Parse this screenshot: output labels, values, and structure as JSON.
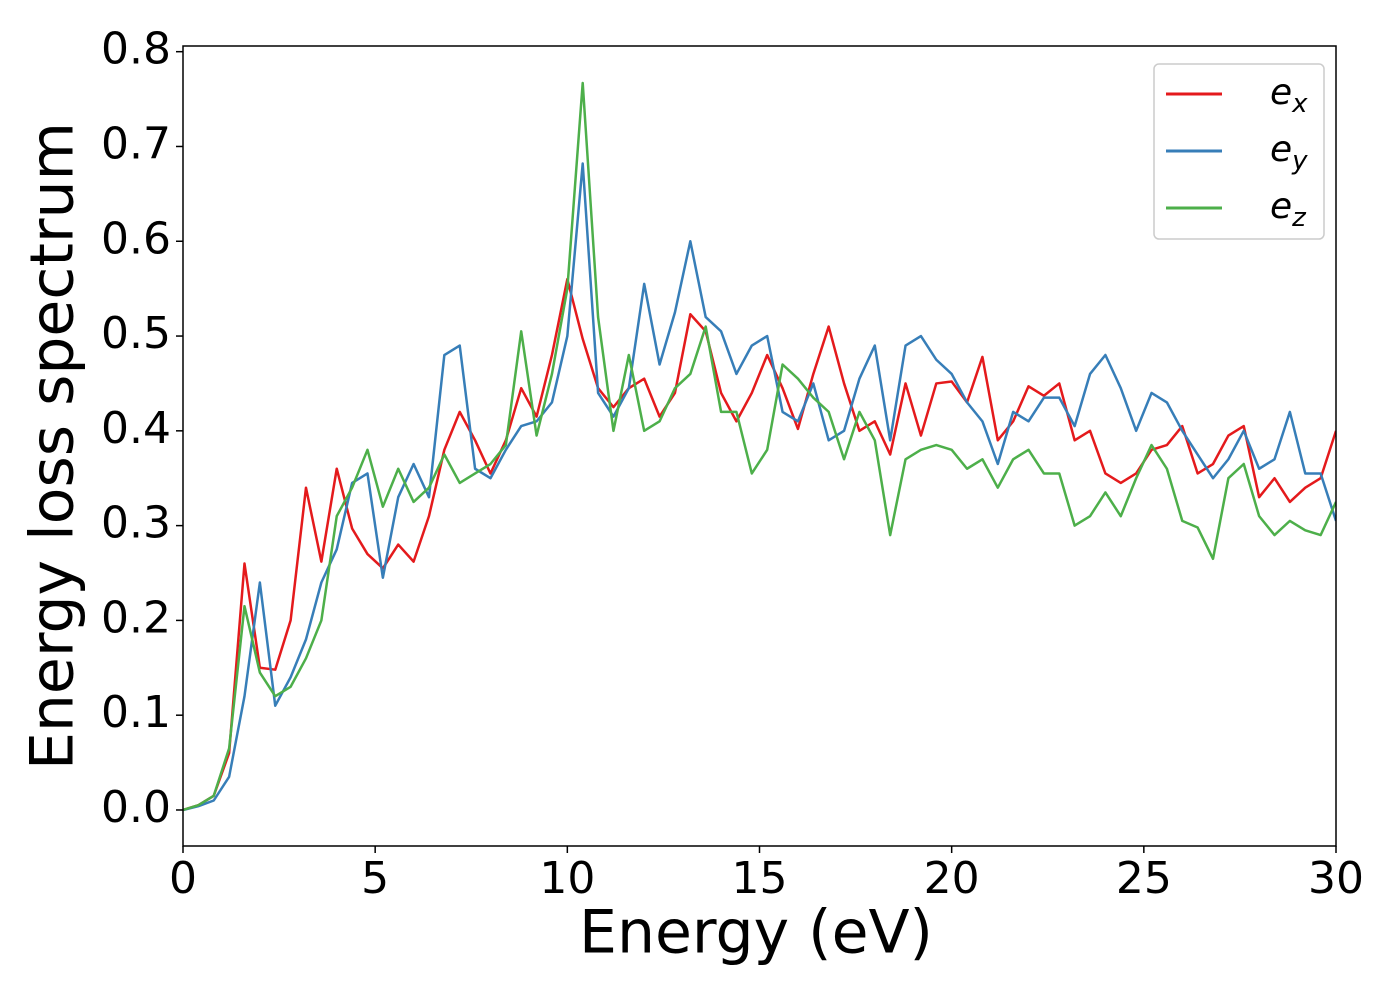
{
  "chart_data": {
    "type": "line",
    "x_label": "Energy (eV)",
    "y_label": "Energy loss spectrum",
    "x": [
      0,
      0.4,
      0.8,
      1.2,
      1.6,
      2.0,
      2.4,
      2.8,
      3.2,
      3.6,
      4.0,
      4.4,
      4.8,
      5.2,
      5.6,
      6.0,
      6.4,
      6.8,
      7.2,
      7.6,
      8.0,
      8.4,
      8.8,
      9.2,
      9.6,
      10.0,
      10.4,
      10.8,
      11.2,
      11.6,
      12.0,
      12.4,
      12.8,
      13.2,
      13.6,
      14.0,
      14.4,
      14.8,
      15.2,
      15.6,
      16.0,
      16.4,
      16.8,
      17.2,
      17.6,
      18.0,
      18.4,
      18.8,
      19.2,
      19.6,
      20.0,
      20.4,
      20.8,
      21.2,
      21.6,
      22.0,
      22.4,
      22.8,
      23.2,
      23.6,
      24.0,
      24.4,
      24.8,
      25.2,
      25.6,
      26.0,
      26.4,
      26.8,
      27.2,
      27.6,
      28.0,
      28.4,
      28.8,
      29.2,
      29.6,
      30.0
    ],
    "series": [
      {
        "name": "e_x",
        "color": "#e41a1c",
        "values": [
          0,
          0.005,
          0.015,
          0.06,
          0.26,
          0.15,
          0.148,
          0.2,
          0.34,
          0.262,
          0.36,
          0.297,
          0.27,
          0.255,
          0.28,
          0.262,
          0.31,
          0.38,
          0.42,
          0.39,
          0.355,
          0.39,
          0.445,
          0.415,
          0.48,
          0.56,
          0.497,
          0.445,
          0.425,
          0.445,
          0.455,
          0.415,
          0.44,
          0.523,
          0.505,
          0.44,
          0.41,
          0.44,
          0.48,
          0.445,
          0.402,
          0.46,
          0.51,
          0.45,
          0.4,
          0.41,
          0.375,
          0.45,
          0.395,
          0.45,
          0.452,
          0.43,
          0.478,
          0.39,
          0.41,
          0.447,
          0.437,
          0.45,
          0.39,
          0.4,
          0.355,
          0.345,
          0.355,
          0.38,
          0.385,
          0.405,
          0.355,
          0.365,
          0.395,
          0.405,
          0.33,
          0.35,
          0.325,
          0.34,
          0.35,
          0.4
        ]
      },
      {
        "name": "e_y",
        "color": "#377eb8",
        "values": [
          0,
          0.004,
          0.01,
          0.035,
          0.12,
          0.24,
          0.11,
          0.14,
          0.18,
          0.24,
          0.275,
          0.345,
          0.355,
          0.245,
          0.33,
          0.365,
          0.33,
          0.48,
          0.49,
          0.36,
          0.35,
          0.38,
          0.405,
          0.41,
          0.43,
          0.5,
          0.682,
          0.44,
          0.415,
          0.445,
          0.555,
          0.47,
          0.525,
          0.6,
          0.52,
          0.505,
          0.46,
          0.49,
          0.5,
          0.42,
          0.41,
          0.45,
          0.39,
          0.4,
          0.455,
          0.49,
          0.39,
          0.49,
          0.5,
          0.475,
          0.46,
          0.43,
          0.41,
          0.365,
          0.42,
          0.41,
          0.435,
          0.435,
          0.405,
          0.46,
          0.48,
          0.445,
          0.4,
          0.44,
          0.43,
          0.4,
          0.375,
          0.35,
          0.37,
          0.4,
          0.36,
          0.37,
          0.42,
          0.355,
          0.355,
          0.305
        ]
      },
      {
        "name": "e_z",
        "color": "#4daf4a",
        "values": [
          0,
          0.005,
          0.015,
          0.065,
          0.215,
          0.145,
          0.12,
          0.13,
          0.16,
          0.2,
          0.31,
          0.34,
          0.38,
          0.32,
          0.36,
          0.325,
          0.34,
          0.375,
          0.345,
          0.355,
          0.365,
          0.385,
          0.505,
          0.395,
          0.46,
          0.55,
          0.767,
          0.52,
          0.4,
          0.48,
          0.4,
          0.41,
          0.445,
          0.46,
          0.51,
          0.42,
          0.42,
          0.355,
          0.38,
          0.47,
          0.455,
          0.435,
          0.42,
          0.37,
          0.42,
          0.39,
          0.29,
          0.37,
          0.38,
          0.385,
          0.38,
          0.36,
          0.37,
          0.34,
          0.37,
          0.38,
          0.355,
          0.355,
          0.3,
          0.31,
          0.335,
          0.31,
          0.35,
          0.385,
          0.36,
          0.305,
          0.298,
          0.265,
          0.35,
          0.365,
          0.31,
          0.29,
          0.305,
          0.295,
          0.29,
          0.325
        ]
      }
    ],
    "xlim": [
      0,
      30
    ],
    "xticks": [
      0,
      5,
      10,
      15,
      20,
      25,
      30
    ],
    "ylim": [
      -0.038,
      0.806
    ],
    "yticks": [
      {
        "value": 0,
        "label": "0.0"
      },
      0.1,
      0.2,
      0.3,
      0.4,
      0.5,
      0.6,
      0.7,
      0.8
    ],
    "legend": "upper right"
  }
}
